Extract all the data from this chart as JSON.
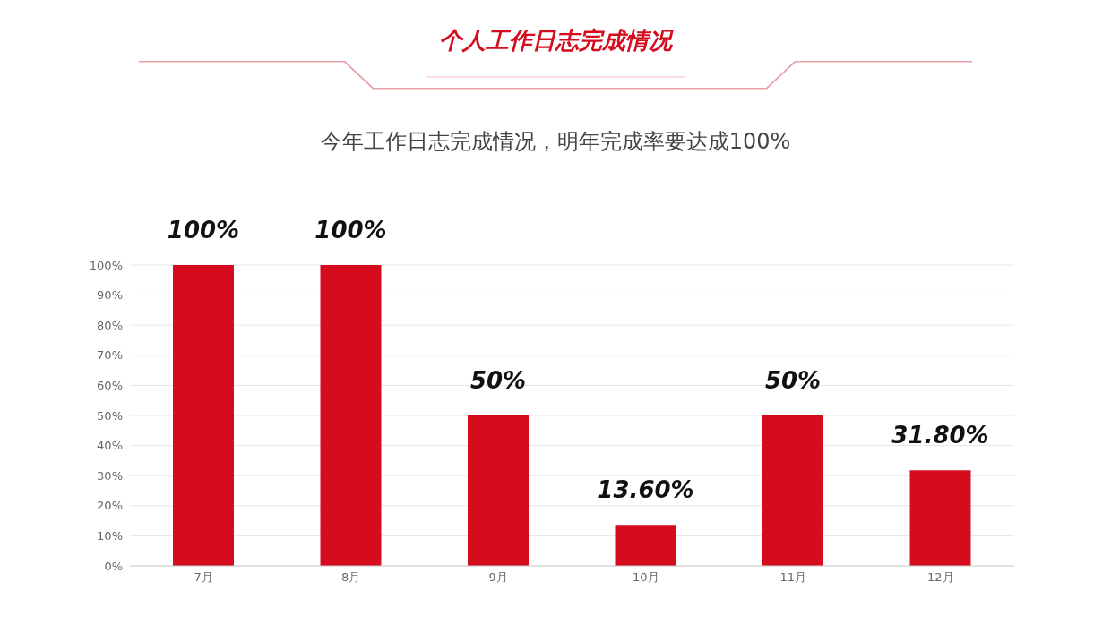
{
  "chart_data": {
    "type": "bar",
    "title": "个人工作日志完成情况",
    "subtitle": "今年工作日志完成情况，明年完成率要达成100%",
    "categories": [
      "7月",
      "8月",
      "9月",
      "10月",
      "11月",
      "12月"
    ],
    "values": [
      100,
      100,
      50,
      13.6,
      50,
      31.8
    ],
    "value_labels": [
      "100%",
      "100%",
      "50%",
      "13.60%",
      "50%",
      "31.80%"
    ],
    "color": "#d50b1e",
    "ylim": [
      0,
      100
    ],
    "yticks": [
      {
        "value": 0,
        "label": "0%"
      },
      {
        "value": 10,
        "label": "10%"
      },
      {
        "value": 20,
        "label": "20%"
      },
      {
        "value": 30,
        "label": "30%"
      },
      {
        "value": 40,
        "label": "40%"
      },
      {
        "value": 50,
        "label": "50%"
      },
      {
        "value": 60,
        "label": "60%"
      },
      {
        "value": 70,
        "label": "70%"
      },
      {
        "value": 80,
        "label": "80%"
      },
      {
        "value": 90,
        "label": "90%"
      },
      {
        "value": 100,
        "label": "100%"
      }
    ],
    "grid": "y"
  }
}
